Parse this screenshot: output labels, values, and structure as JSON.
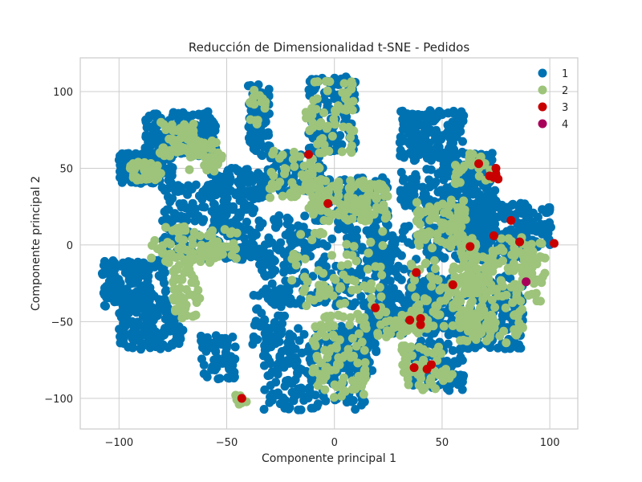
{
  "chart_data": {
    "type": "scatter",
    "title": "Reducción de Dimensionalidad t-SNE - Pedidos",
    "xlabel": "Componente principal 1",
    "ylabel": "Componente principal 2",
    "xlim": [
      -118,
      113
    ],
    "ylim": [
      -120,
      122
    ],
    "xticks": [
      -100,
      -50,
      0,
      50,
      100
    ],
    "yticks": [
      -100,
      -50,
      0,
      50,
      100
    ],
    "xtick_labels": [
      "−100",
      "−50",
      "0",
      "50",
      "100"
    ],
    "ytick_labels": [
      "−100",
      "−50",
      "0",
      "50",
      "100"
    ],
    "grid": true,
    "legend_position": "top-right",
    "series": [
      {
        "name": "1",
        "color": "#0072b2",
        "clusters": [
          {
            "x": [
              -100,
              -75
            ],
            "y": [
              40,
              60
            ],
            "n": 160
          },
          {
            "x": [
              -88,
              -55
            ],
            "y": [
              57,
              87
            ],
            "n": 180
          },
          {
            "x": [
              -58,
              -30
            ],
            "y": [
              30,
              50
            ],
            "n": 80
          },
          {
            "x": [
              -80,
              -35
            ],
            "y": [
              -10,
              40
            ],
            "n": 260
          },
          {
            "x": [
              -108,
              -78
            ],
            "y": [
              -40,
              -10
            ],
            "n": 160
          },
          {
            "x": [
              -100,
              -70
            ],
            "y": [
              -68,
              -40
            ],
            "n": 150
          },
          {
            "x": [
              -62,
              -45
            ],
            "y": [
              -88,
              -58
            ],
            "n": 60
          },
          {
            "x": [
              -40,
              -30
            ],
            "y": [
              58,
              105
            ],
            "n": 70
          },
          {
            "x": [
              -38,
              -20
            ],
            "y": [
              -78,
              -30
            ],
            "n": 60
          },
          {
            "x": [
              -35,
              25
            ],
            "y": [
              -40,
              20
            ],
            "n": 280
          },
          {
            "x": [
              -30,
              -5
            ],
            "y": [
              35,
              60
            ],
            "n": 80
          },
          {
            "x": [
              -12,
              10
            ],
            "y": [
              60,
              110
            ],
            "n": 140
          },
          {
            "x": [
              -33,
              15
            ],
            "y": [
              -108,
              -52
            ],
            "n": 200
          },
          {
            "x": [
              0,
              20
            ],
            "y": [
              -85,
              -55
            ],
            "n": 80
          },
          {
            "x": [
              -10,
              25
            ],
            "y": [
              20,
              45
            ],
            "n": 100
          },
          {
            "x": [
              15,
              30
            ],
            "y": [
              -15,
              10
            ],
            "n": 60
          },
          {
            "x": [
              15,
              35
            ],
            "y": [
              -60,
              -40
            ],
            "n": 60
          },
          {
            "x": [
              30,
              60
            ],
            "y": [
              55,
              88
            ],
            "n": 150
          },
          {
            "x": [
              30,
              70
            ],
            "y": [
              -10,
              50
            ],
            "n": 240
          },
          {
            "x": [
              25,
              48
            ],
            "y": [
              -50,
              -15
            ],
            "n": 100
          },
          {
            "x": [
              35,
              60
            ],
            "y": [
              -95,
              -65
            ],
            "n": 90
          },
          {
            "x": [
              50,
              75
            ],
            "y": [
              0,
              60
            ],
            "n": 200
          },
          {
            "x": [
              55,
              90
            ],
            "y": [
              -10,
              28
            ],
            "n": 180
          },
          {
            "x": [
              40,
              88
            ],
            "y": [
              -68,
              -20
            ],
            "n": 240
          },
          {
            "x": [
              78,
              102
            ],
            "y": [
              -5,
              25
            ],
            "n": 80
          }
        ]
      },
      {
        "name": "2",
        "color": "#9dc47a",
        "clusters": [
          {
            "x": [
              -95,
              -80
            ],
            "y": [
              42,
              54
            ],
            "n": 40
          },
          {
            "x": [
              -83,
              -62
            ],
            "y": [
              58,
              80
            ],
            "n": 60
          },
          {
            "x": [
              -68,
              -52
            ],
            "y": [
              48,
              68
            ],
            "n": 40
          },
          {
            "x": [
              -85,
              -45
            ],
            "y": [
              -12,
              12
            ],
            "n": 90
          },
          {
            "x": [
              -75,
              -62
            ],
            "y": [
              -50,
              -12
            ],
            "n": 50
          },
          {
            "x": [
              -40,
              -32
            ],
            "y": [
              75,
              102
            ],
            "n": 15
          },
          {
            "x": [
              -30,
              -5
            ],
            "y": [
              30,
              62
            ],
            "n": 50
          },
          {
            "x": [
              -15,
              10
            ],
            "y": [
              60,
              108
            ],
            "n": 60
          },
          {
            "x": [
              -12,
              25
            ],
            "y": [
              15,
              42
            ],
            "n": 120
          },
          {
            "x": [
              -20,
              25
            ],
            "y": [
              -40,
              10
            ],
            "n": 70
          },
          {
            "x": [
              -10,
              15
            ],
            "y": [
              -100,
              -45
            ],
            "n": 100
          },
          {
            "x": [
              20,
              40
            ],
            "y": [
              -60,
              -40
            ],
            "n": 40
          },
          {
            "x": [
              30,
              55
            ],
            "y": [
              -95,
              -65
            ],
            "n": 60
          },
          {
            "x": [
              35,
              72
            ],
            "y": [
              -55,
              -10
            ],
            "n": 100
          },
          {
            "x": [
              38,
              62
            ],
            "y": [
              -2,
              30
            ],
            "n": 80
          },
          {
            "x": [
              58,
              98
            ],
            "y": [
              -38,
              5
            ],
            "n": 140
          },
          {
            "x": [
              58,
              88
            ],
            "y": [
              -65,
              -40
            ],
            "n": 60
          },
          {
            "x": [
              55,
              75
            ],
            "y": [
              40,
              60
            ],
            "n": 30
          },
          {
            "x": [
              -46,
              -40
            ],
            "y": [
              -104,
              -98
            ],
            "n": 8
          }
        ]
      },
      {
        "name": "3",
        "color": "#c80000",
        "points": [
          [
            -43,
            -100
          ],
          [
            -12,
            59
          ],
          [
            -3,
            27
          ],
          [
            19,
            -41
          ],
          [
            35,
            -49
          ],
          [
            38,
            -18
          ],
          [
            40,
            -48
          ],
          [
            40,
            -52
          ],
          [
            37,
            -80
          ],
          [
            43,
            -81
          ],
          [
            45,
            -78
          ],
          [
            55,
            -26
          ],
          [
            63,
            -1
          ],
          [
            67,
            53
          ],
          [
            72,
            45
          ],
          [
            75,
            50
          ],
          [
            75,
            46
          ],
          [
            76,
            43
          ],
          [
            74,
            44
          ],
          [
            82,
            16
          ],
          [
            74,
            6
          ],
          [
            86,
            2
          ],
          [
            102,
            1
          ]
        ]
      },
      {
        "name": "4",
        "color": "#a8005a",
        "points": [
          [
            89,
            -24
          ]
        ]
      }
    ]
  }
}
